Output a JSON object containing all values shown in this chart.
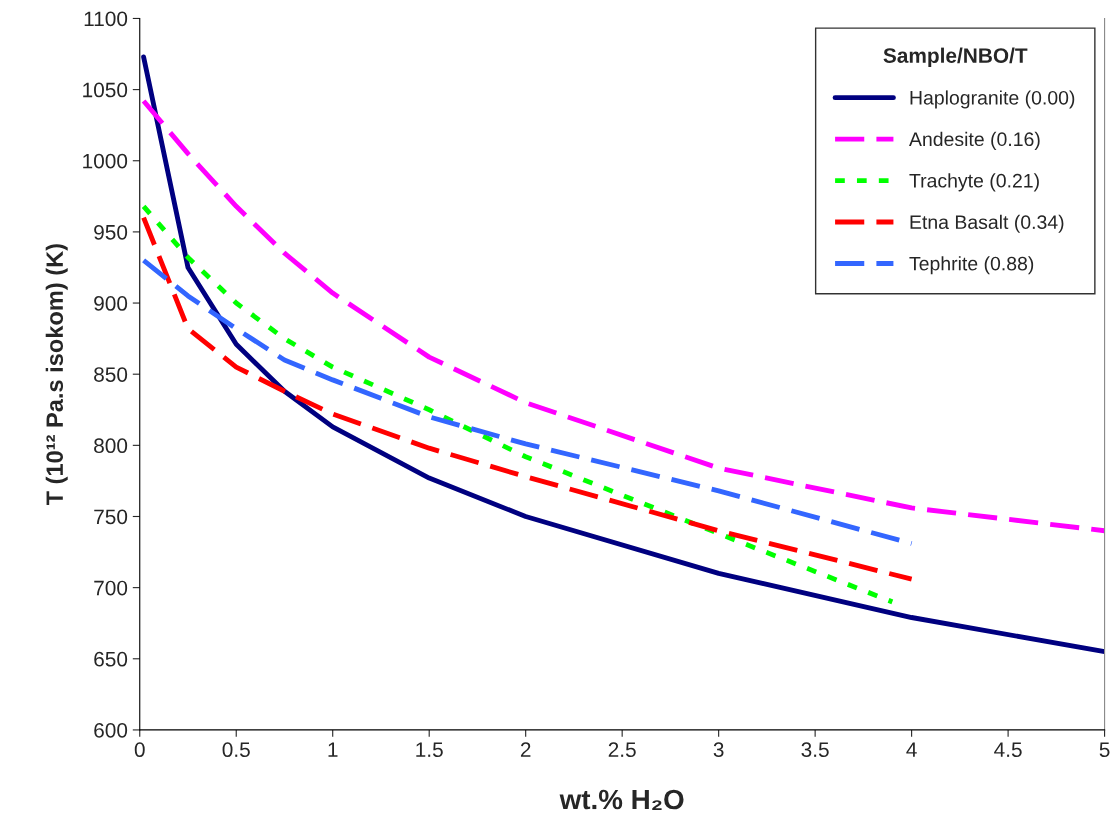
{
  "chart_data": {
    "type": "line",
    "xlabel": "wt.% H₂O",
    "ylabel": "T (10¹² Pa.s isokom) (K)",
    "legend_title": "Sample/NBO/T",
    "legend": "top right",
    "grid": false,
    "marker": "none",
    "xlim": [
      0,
      5
    ],
    "xticks": [
      0,
      0.5,
      1,
      1.5,
      2,
      2.5,
      3,
      3.5,
      4,
      4.5,
      5
    ],
    "ylim": [
      600,
      1100
    ],
    "yticks": [
      600,
      650,
      700,
      750,
      800,
      850,
      900,
      950,
      1000,
      1050,
      1100
    ],
    "series": [
      {
        "name": "Haplogranite (0.00)",
        "color": "#000080",
        "line_style": "solid",
        "x": [
          0.02,
          0.25,
          0.5,
          0.75,
          1,
          1.5,
          2,
          3,
          4,
          5
        ],
        "values": [
          1073,
          925,
          871,
          838,
          813,
          777,
          750,
          710,
          679,
          655
        ]
      },
      {
        "name": "Andesite (0.16)",
        "color": "#ff00ff",
        "line_style": "dashed",
        "x": [
          0.02,
          0.25,
          0.5,
          0.75,
          1,
          1.5,
          2,
          3,
          4,
          5
        ],
        "values": [
          1042,
          1005,
          968,
          935,
          907,
          862,
          830,
          784,
          756,
          740
        ]
      },
      {
        "name": "Trachyte (0.21)",
        "color": "#00ff00",
        "line_style": "dotted",
        "x": [
          0.02,
          0.25,
          0.5,
          0.75,
          1,
          1.5,
          2,
          3,
          3.9
        ],
        "values": [
          968,
          932,
          900,
          875,
          855,
          825,
          792,
          738,
          690
        ]
      },
      {
        "name": "Etna Basalt (0.34)",
        "color": "#ff0000",
        "line_style": "dashed",
        "x": [
          0.02,
          0.25,
          0.5,
          0.75,
          1,
          1.5,
          2,
          3,
          4
        ],
        "values": [
          960,
          882,
          855,
          838,
          822,
          798,
          778,
          740,
          706
        ]
      },
      {
        "name": "Tephrite (0.88)",
        "color": "#3366ff",
        "line_style": "dashed",
        "x": [
          0.02,
          0.25,
          0.5,
          0.75,
          1,
          1.5,
          2,
          3,
          4
        ],
        "values": [
          930,
          905,
          882,
          860,
          846,
          820,
          801,
          768,
          731
        ]
      }
    ]
  }
}
